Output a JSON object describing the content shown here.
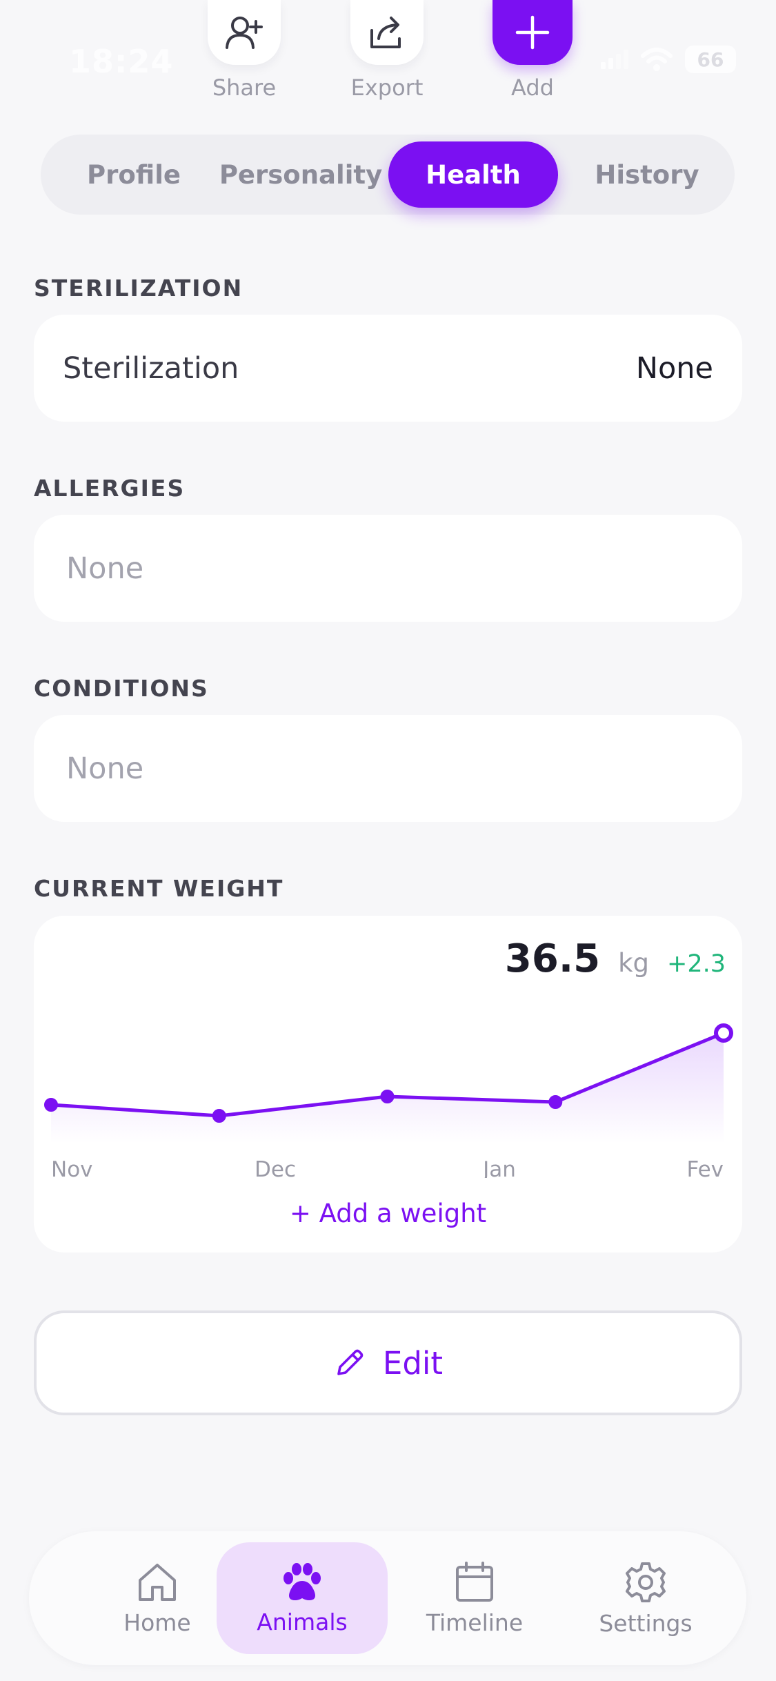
{
  "status_bar": {
    "time": "18:24",
    "battery": "66"
  },
  "actions": {
    "share": "Share",
    "export": "Export",
    "add": "Add"
  },
  "tabs": [
    {
      "label": "Profile",
      "active": false
    },
    {
      "label": "Personality",
      "active": false
    },
    {
      "label": "Health",
      "active": true
    },
    {
      "label": "History",
      "active": false
    }
  ],
  "sterilization": {
    "section_title": "STERILIZATION",
    "label": "Sterilization",
    "value": "None"
  },
  "allergies": {
    "section_title": "ALLERGIES",
    "value": "None"
  },
  "conditions": {
    "section_title": "CONDITIONS",
    "value": "None"
  },
  "current_weight": {
    "section_title": "CURRENT WEIGHT",
    "value": "36.5",
    "unit": "kg",
    "change": "+2.3",
    "add_label": "+ Add a weight"
  },
  "chart_data": {
    "type": "line",
    "title": "",
    "xlabel": "",
    "ylabel": "",
    "x_tick_labels": [
      "Nov",
      "Dec",
      "Jan",
      "Fev"
    ],
    "x": [
      0,
      1,
      2,
      3,
      4
    ],
    "series": [
      {
        "values": [
          33.9,
          33.5,
          34.2,
          34.0,
          36.5
        ]
      }
    ],
    "ylim": [
      32.5,
      37.0
    ],
    "grid": false,
    "legend": "none",
    "colors": {
      "line": "#7b10f2",
      "positive_change": "#1fb57a"
    }
  },
  "edit": {
    "label": "Edit"
  },
  "nav": [
    {
      "label": "Home",
      "icon": "home-icon",
      "active": false
    },
    {
      "label": "Animals",
      "icon": "paw-icon",
      "active": true
    },
    {
      "label": "Timeline",
      "icon": "calendar-icon",
      "active": false
    },
    {
      "label": "Settings",
      "icon": "gear-icon",
      "active": false
    }
  ],
  "colors": {
    "accent": "#7b10f2",
    "background": "#f7f7f9",
    "active_nav_bg": "#eeddfc"
  }
}
